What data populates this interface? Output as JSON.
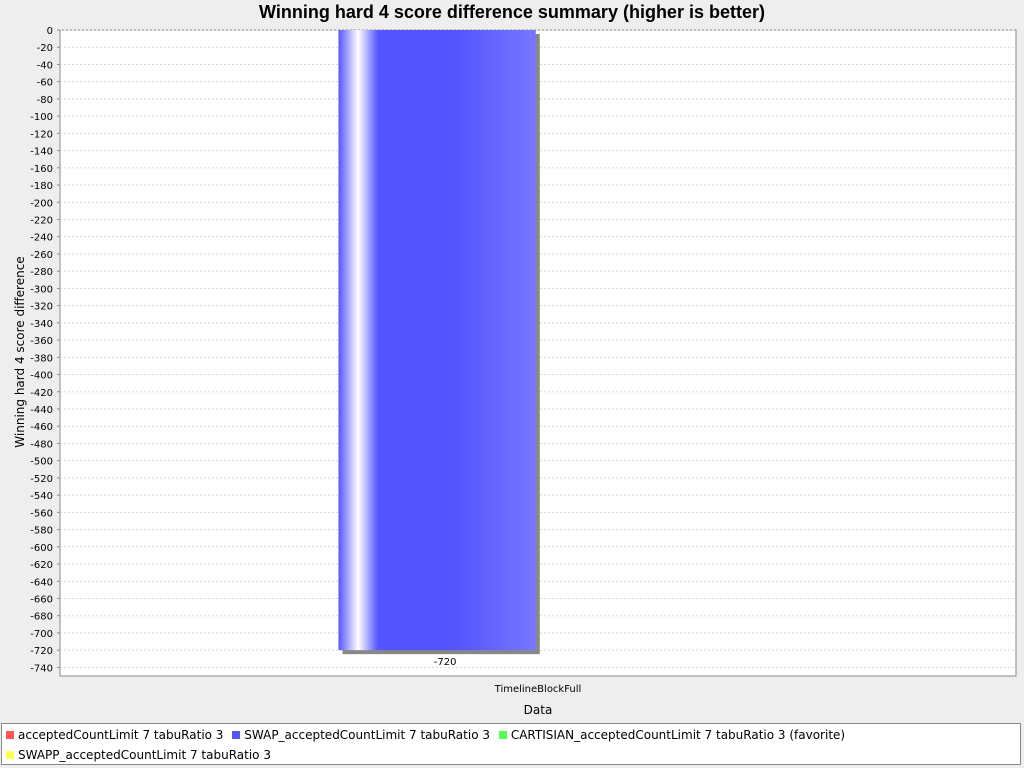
{
  "chart_data": {
    "type": "bar",
    "title": "Winning hard 4 score difference summary (higher is better)",
    "xlabel": "Data",
    "ylabel": "Winning hard 4 score difference",
    "categories": [
      "TimelineBlockFull"
    ],
    "ylim": [
      -750,
      0
    ],
    "yticks": [
      0,
      -20,
      -40,
      -60,
      -80,
      -100,
      -120,
      -140,
      -160,
      -180,
      -200,
      -220,
      -240,
      -260,
      -280,
      -300,
      -320,
      -340,
      -360,
      -380,
      -400,
      -420,
      -440,
      -460,
      -480,
      -500,
      -520,
      -540,
      -560,
      -580,
      -600,
      -620,
      -640,
      -660,
      -680,
      -700,
      -720,
      -740
    ],
    "grid": true,
    "legend_position": "bottom",
    "series": [
      {
        "name": "acceptedCountLimit 7 tabuRatio 3",
        "color": "#ff5555",
        "values": [
          0
        ]
      },
      {
        "name": "SWAP_acceptedCountLimit 7 tabuRatio 3",
        "color": "#5555ff",
        "values": [
          -720
        ],
        "data_label": "-720"
      },
      {
        "name": "CARTISIAN_acceptedCountLimit 7 tabuRatio 3 (favorite)",
        "color": "#55ff55",
        "values": [
          0
        ]
      },
      {
        "name": "SWAPP_acceptedCountLimit 7 tabuRatio 3",
        "color": "#ffff55",
        "values": [
          0
        ]
      }
    ]
  }
}
